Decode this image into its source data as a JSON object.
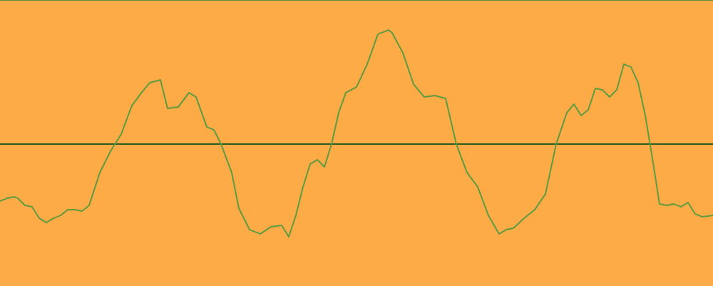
{
  "colors": {
    "background": "#FCAB46",
    "top_border": "#5E8F44",
    "baseline": "#2B5B20",
    "signal": "#5E9A40"
  },
  "chart_data": {
    "type": "line",
    "title": "",
    "xlabel": "",
    "ylabel": "",
    "grid": false,
    "legend": "none",
    "ylim": [
      -1,
      1
    ],
    "xlim": [
      0,
      1
    ],
    "baseline_value": 0,
    "series": [
      {
        "x": [
          0,
          0.01,
          0.02,
          0.025,
          0.035,
          0.045,
          0.055,
          0.065,
          0.075,
          0.085,
          0.095,
          0.105,
          0.115,
          0.125,
          0.14,
          0.155,
          0.17,
          0.185,
          0.2,
          0.21,
          0.225,
          0.235,
          0.25,
          0.265,
          0.275,
          0.29,
          0.3,
          0.31,
          0.325,
          0.335,
          0.35,
          0.365,
          0.38,
          0.395,
          0.405,
          0.415,
          0.425,
          0.435,
          0.445,
          0.455,
          0.465,
          0.475,
          0.485,
          0.5,
          0.515,
          0.53,
          0.545,
          0.55,
          0.565,
          0.58,
          0.595,
          0.61,
          0.625,
          0.64,
          0.655,
          0.67,
          0.685,
          0.7,
          0.71,
          0.72,
          0.735,
          0.75,
          0.765,
          0.78,
          0.795,
          0.805,
          0.815,
          0.825,
          0.835,
          0.845,
          0.855,
          0.865,
          0.875,
          0.885,
          0.895,
          0.905,
          0.915,
          0.925,
          0.935,
          0.945,
          0.955,
          0.965,
          0.975,
          0.985,
          1.0
        ],
        "y": [
          -0.4,
          -0.38,
          -0.37,
          -0.38,
          -0.43,
          -0.44,
          -0.52,
          -0.55,
          -0.52,
          -0.5,
          -0.46,
          -0.46,
          -0.47,
          -0.43,
          -0.2,
          -0.05,
          0.07,
          0.27,
          0.37,
          0.43,
          0.45,
          0.25,
          0.26,
          0.36,
          0.33,
          0.12,
          0.1,
          0.0,
          -0.2,
          -0.45,
          -0.6,
          -0.63,
          -0.58,
          -0.57,
          -0.65,
          -0.5,
          -0.3,
          -0.14,
          -0.11,
          -0.16,
          0.0,
          0.22,
          0.36,
          0.4,
          0.56,
          0.77,
          0.8,
          0.78,
          0.64,
          0.42,
          0.33,
          0.34,
          0.32,
          0.0,
          -0.2,
          -0.3,
          -0.5,
          -0.63,
          -0.6,
          -0.59,
          -0.52,
          -0.46,
          -0.35,
          0.0,
          0.22,
          0.28,
          0.2,
          0.24,
          0.39,
          0.38,
          0.33,
          0.38,
          0.56,
          0.54,
          0.43,
          0.2,
          -0.1,
          -0.42,
          -0.43,
          -0.42,
          -0.44,
          -0.41,
          -0.49,
          -0.51,
          -0.5
        ]
      }
    ]
  }
}
